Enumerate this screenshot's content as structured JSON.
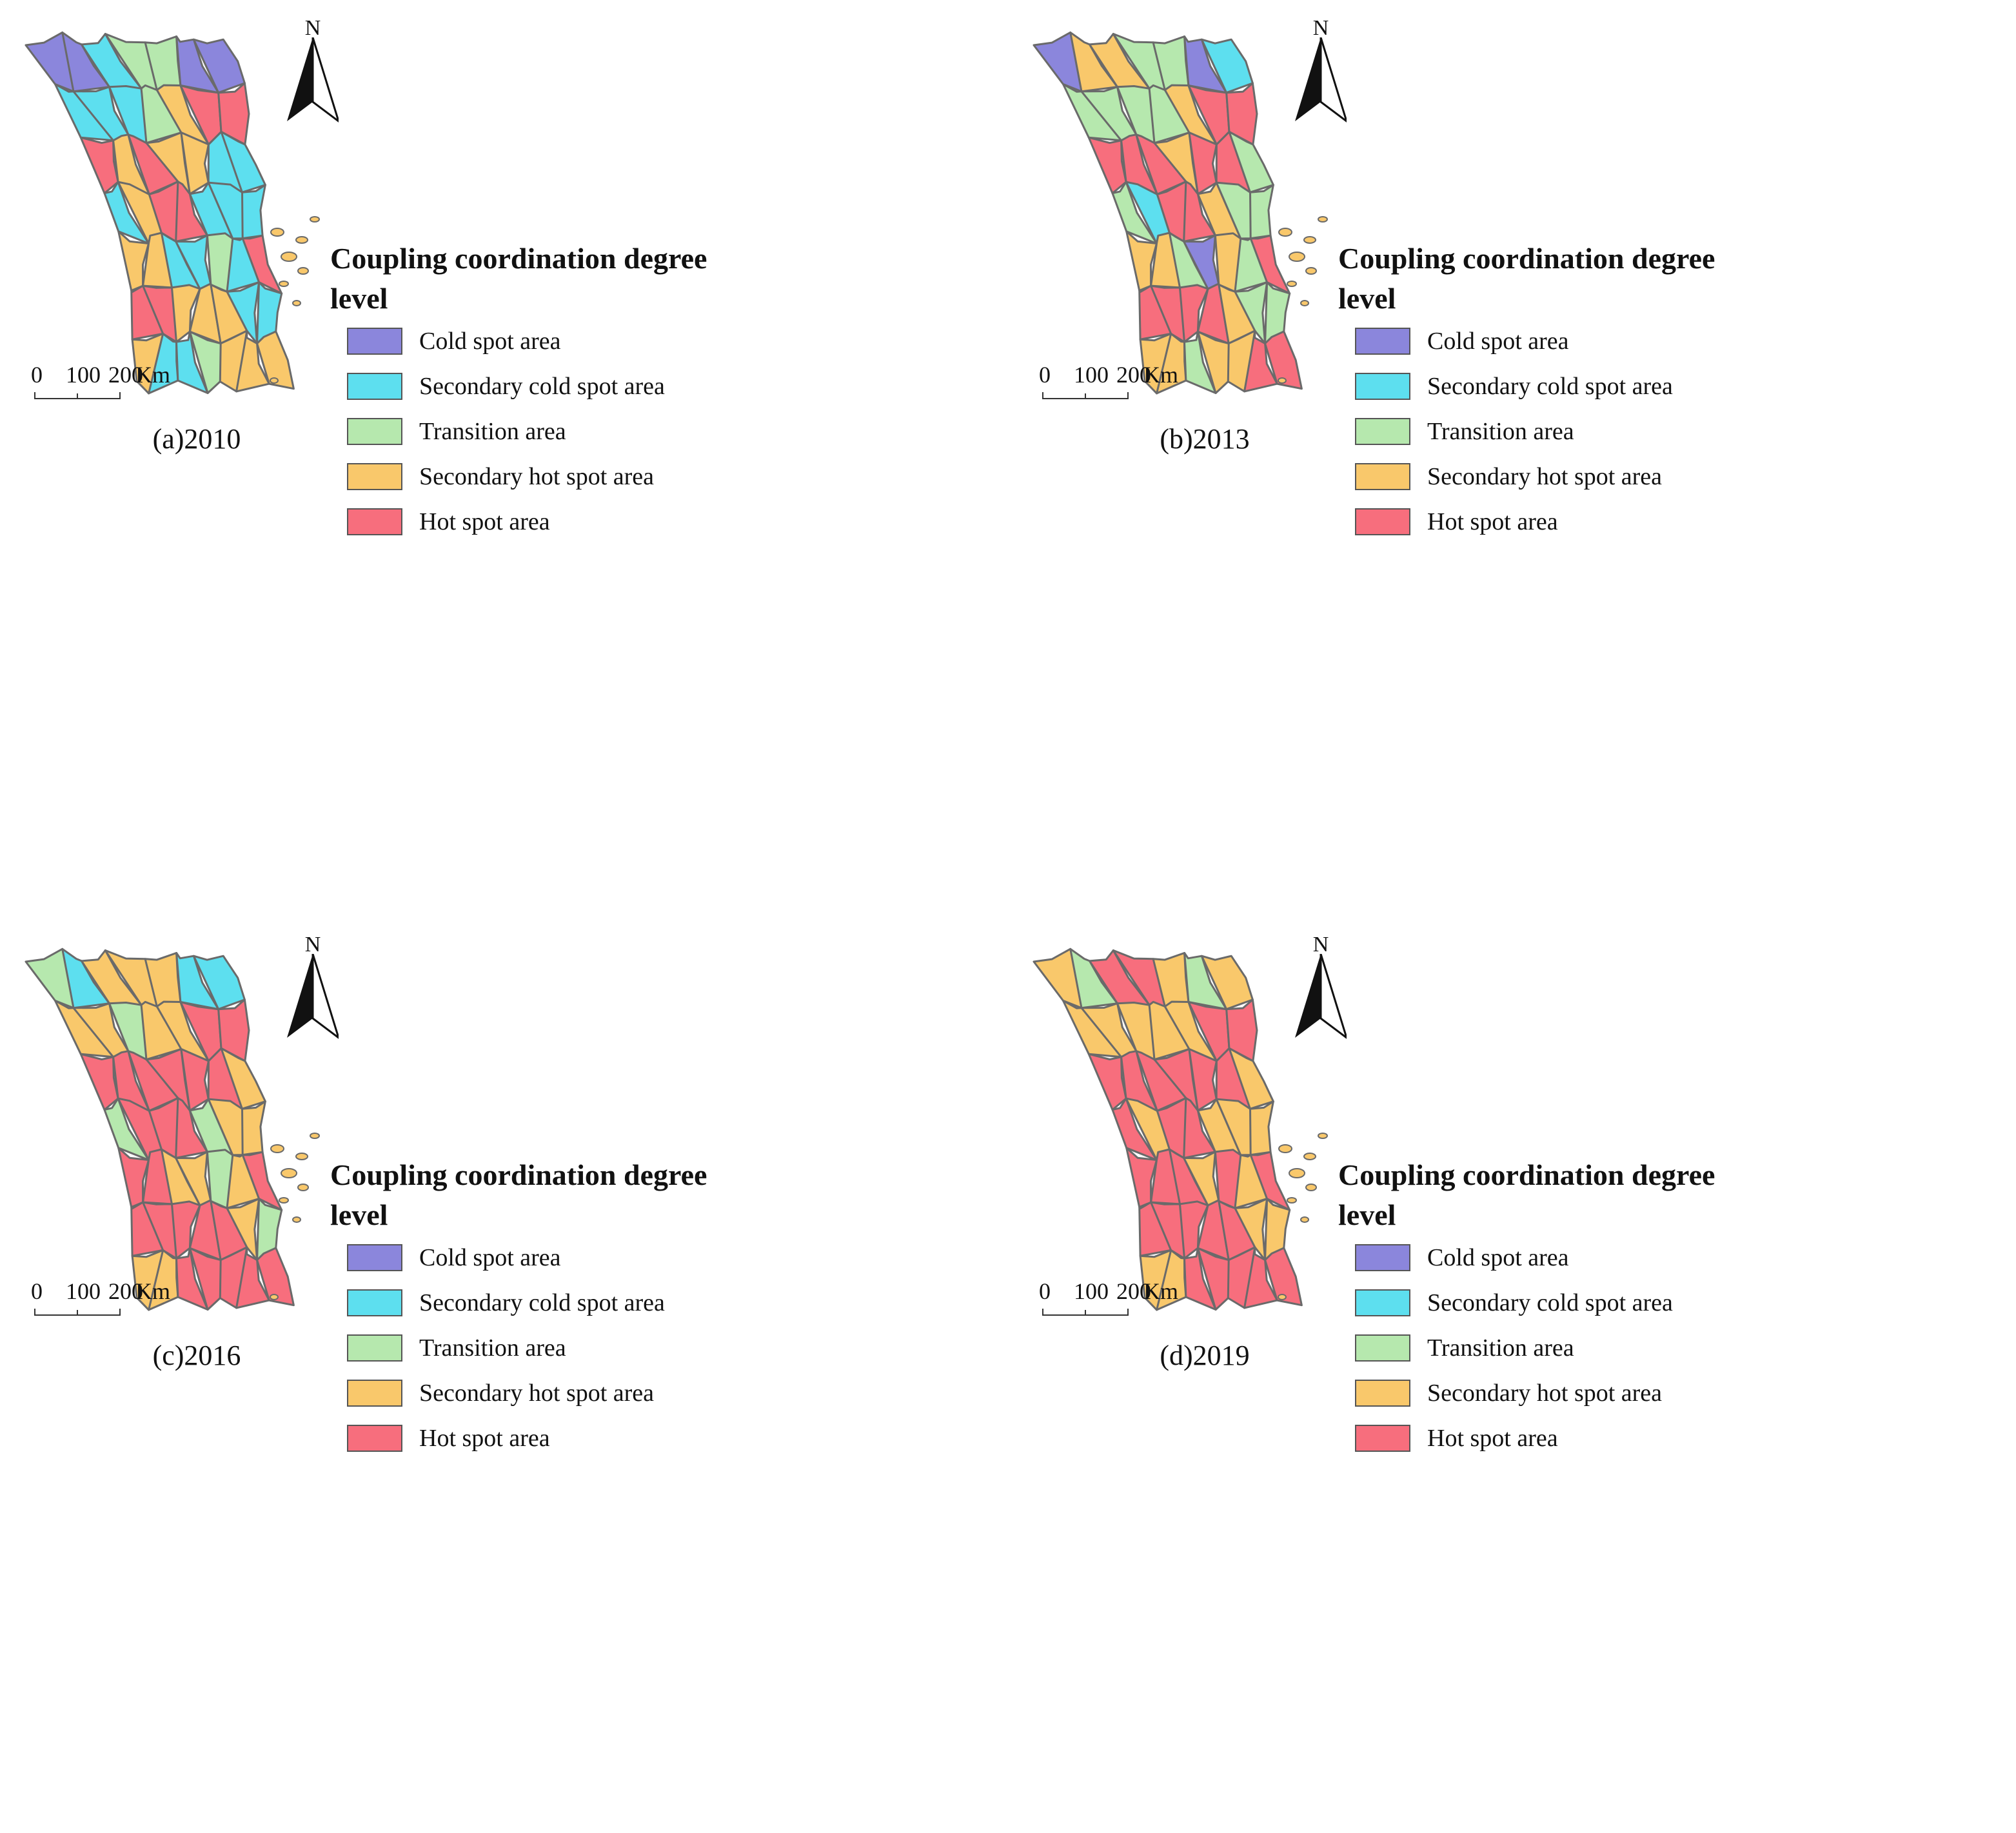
{
  "legend": {
    "title": "Coupling coordination degree level",
    "items": [
      {
        "label": "Cold spot area",
        "color": "#8b86dc"
      },
      {
        "label": "Secondary cold spot area",
        "color": "#5ddfef"
      },
      {
        "label": "Transition area",
        "color": "#b6e8ae"
      },
      {
        "label": "Secondary hot spot area",
        "color": "#f9c86b"
      },
      {
        "label": "Hot spot area",
        "color": "#f76e7d"
      }
    ]
  },
  "north_arrow": {
    "label": "N",
    "icon": "north-arrow-icon"
  },
  "scale_bar": {
    "ticks": [
      "0",
      "100",
      "200"
    ],
    "unit": "Km"
  },
  "panels": [
    {
      "caption": "(a)2010",
      "regions": [
        0,
        0,
        1,
        2,
        2,
        0,
        0,
        1,
        1,
        1,
        2,
        3,
        4,
        4,
        4,
        3,
        4,
        3,
        3,
        1,
        1,
        1,
        3,
        4,
        4,
        1,
        1,
        1,
        3,
        3,
        1,
        1,
        2,
        1,
        4,
        4,
        4,
        3,
        3,
        3,
        1,
        1,
        3,
        1,
        1,
        2,
        3,
        3,
        3
      ]
    },
    {
      "caption": "(b)2013",
      "regions": [
        0,
        3,
        3,
        2,
        2,
        0,
        1,
        2,
        2,
        2,
        2,
        3,
        4,
        4,
        4,
        4,
        4,
        3,
        4,
        4,
        2,
        2,
        1,
        4,
        4,
        3,
        2,
        2,
        3,
        3,
        2,
        0,
        3,
        2,
        4,
        4,
        4,
        4,
        4,
        3,
        2,
        2,
        3,
        3,
        2,
        3,
        3,
        4,
        4
      ]
    },
    {
      "caption": "(c)2016",
      "regions": [
        2,
        1,
        3,
        3,
        3,
        1,
        1,
        3,
        3,
        2,
        3,
        3,
        4,
        4,
        4,
        4,
        4,
        4,
        4,
        4,
        3,
        2,
        4,
        4,
        4,
        2,
        3,
        3,
        4,
        4,
        3,
        3,
        2,
        3,
        4,
        4,
        4,
        4,
        4,
        4,
        3,
        2,
        3,
        3,
        4,
        4,
        4,
        4,
        4
      ]
    },
    {
      "caption": "(d)2019",
      "regions": [
        3,
        2,
        4,
        4,
        3,
        2,
        3,
        3,
        3,
        3,
        3,
        3,
        4,
        4,
        4,
        4,
        4,
        4,
        4,
        4,
        3,
        4,
        3,
        4,
        4,
        3,
        3,
        3,
        4,
        4,
        4,
        3,
        4,
        3,
        4,
        4,
        4,
        4,
        4,
        4,
        3,
        3,
        3,
        3,
        4,
        4,
        4,
        4,
        4
      ]
    }
  ]
}
